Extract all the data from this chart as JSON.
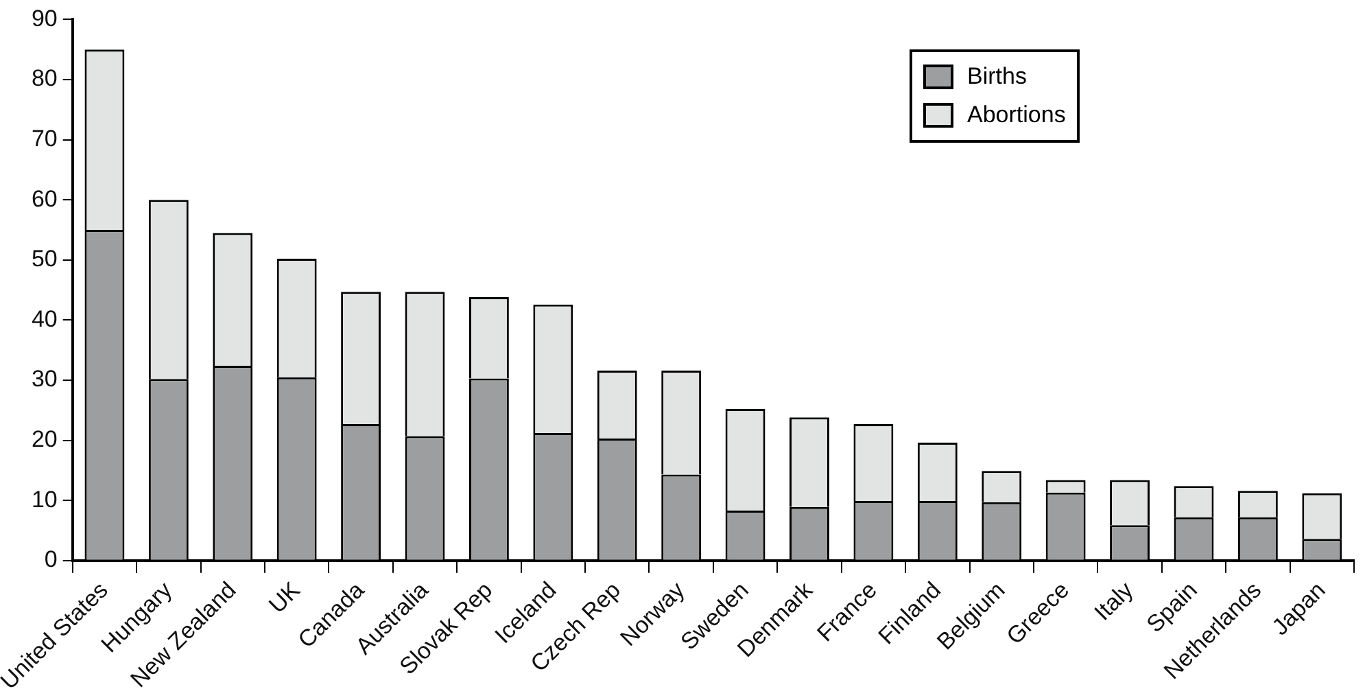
{
  "chart_data": {
    "type": "bar",
    "stacked": true,
    "categories": [
      "United States",
      "Hungary",
      "New Zealand",
      "UK",
      "Canada",
      "Australia",
      "Slovak Rep",
      "Iceland",
      "Czech Rep",
      "Norway",
      "Sweden",
      "Denmark",
      "France",
      "Finland",
      "Belgium",
      "Greece",
      "Italy",
      "Spain",
      "Netherlands",
      "Japan"
    ],
    "series": [
      {
        "name": "Births",
        "color": "#9d9ea0",
        "values": [
          55,
          30.2,
          32.4,
          30.5,
          22.7,
          20.7,
          30.3,
          21.2,
          20.3,
          14.3,
          8.3,
          8.9,
          9.9,
          9.9,
          9.7,
          11.3,
          5.9,
          7.2,
          7.2,
          3.6
        ]
      },
      {
        "name": "Abortions",
        "color": "#e2e3e3",
        "values": [
          30,
          29.8,
          22.1,
          19.7,
          22,
          24,
          13.5,
          21.4,
          11.3,
          17.3,
          16.9,
          14.9,
          12.8,
          9.7,
          5.2,
          2.1,
          7.5,
          5.2,
          4.4,
          7.6
        ]
      }
    ],
    "ylim": [
      0,
      90
    ],
    "yticks": [
      0,
      10,
      20,
      30,
      40,
      50,
      60,
      70,
      80,
      90
    ],
    "grid": false,
    "legend": "top right"
  }
}
